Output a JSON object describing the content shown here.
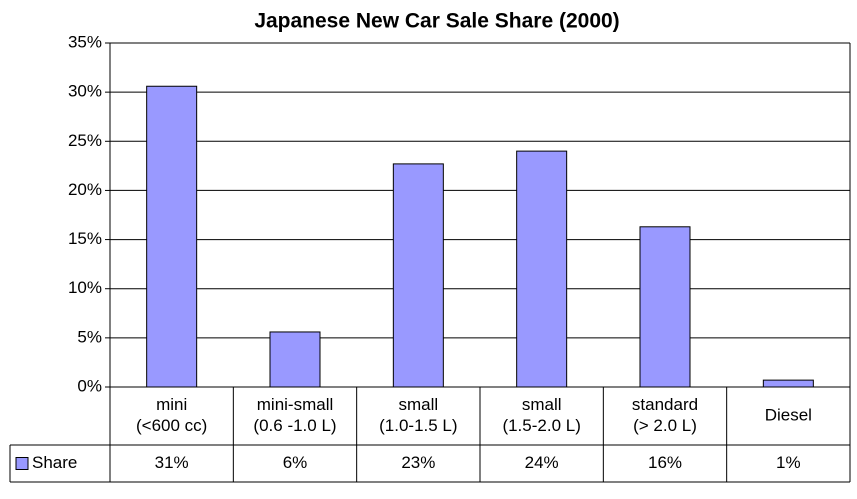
{
  "chart_data": {
    "type": "bar",
    "title": "Japanese New Car Sale Share (2000)",
    "categories": [
      [
        "mini",
        "(<600 cc)"
      ],
      [
        "mini-small",
        "(0.6 -1.0 L)"
      ],
      [
        "small",
        "(1.0-1.5 L)"
      ],
      [
        "small",
        "(1.5-2.0 L)"
      ],
      [
        "standard",
        "(> 2.0 L)"
      ],
      [
        "Diesel"
      ]
    ],
    "series": [
      {
        "name": "Share",
        "color": "#9999ff",
        "values": [
          30.6,
          5.6,
          22.7,
          24.0,
          16.3,
          0.7
        ],
        "value_labels": [
          "31%",
          "6%",
          "23%",
          "24%",
          "16%",
          "1%"
        ]
      }
    ],
    "ylim": [
      0,
      35
    ],
    "yticks": [
      {
        "value": 0,
        "label": "0%"
      },
      {
        "value": 5,
        "label": "5%"
      },
      {
        "value": 10,
        "label": "10%"
      },
      {
        "value": 15,
        "label": "15%"
      },
      {
        "value": 20,
        "label": "20%"
      },
      {
        "value": 25,
        "label": "25%"
      },
      {
        "value": 30,
        "label": "30%"
      },
      {
        "value": 35,
        "label": "35%"
      }
    ],
    "grid": true
  }
}
